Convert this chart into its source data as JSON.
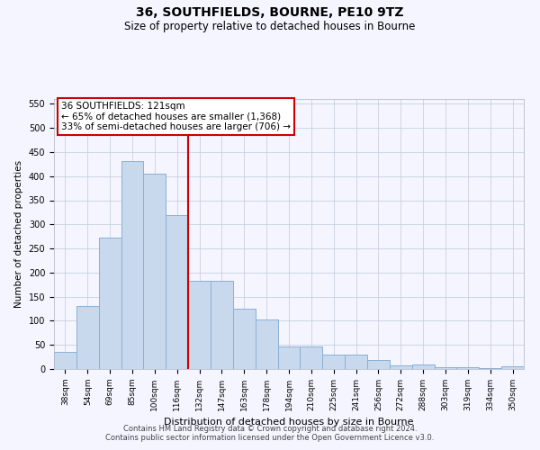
{
  "title": "36, SOUTHFIELDS, BOURNE, PE10 9TZ",
  "subtitle": "Size of property relative to detached houses in Bourne",
  "xlabel": "Distribution of detached houses by size in Bourne",
  "ylabel": "Number of detached properties",
  "categories": [
    "38sqm",
    "54sqm",
    "69sqm",
    "85sqm",
    "100sqm",
    "116sqm",
    "132sqm",
    "147sqm",
    "163sqm",
    "178sqm",
    "194sqm",
    "210sqm",
    "225sqm",
    "241sqm",
    "256sqm",
    "272sqm",
    "288sqm",
    "303sqm",
    "319sqm",
    "334sqm",
    "350sqm"
  ],
  "values": [
    35,
    130,
    272,
    432,
    405,
    320,
    183,
    183,
    125,
    103,
    46,
    46,
    30,
    30,
    18,
    7,
    10,
    3,
    4,
    2,
    6
  ],
  "bar_color": "#c8d9ee",
  "bar_edge_color": "#8ab0d4",
  "vline_color": "#cc0000",
  "annotation_text": "36 SOUTHFIELDS: 121sqm\n← 65% of detached houses are smaller (1,368)\n33% of semi-detached houses are larger (706) →",
  "annotation_box_color": "white",
  "annotation_box_edge": "#cc0000",
  "ylim": [
    0,
    560
  ],
  "yticks": [
    0,
    50,
    100,
    150,
    200,
    250,
    300,
    350,
    400,
    450,
    500,
    550
  ],
  "footer1": "Contains HM Land Registry data © Crown copyright and database right 2024.",
  "footer2": "Contains public sector information licensed under the Open Government Licence v3.0.",
  "bg_color": "#f5f5ff",
  "grid_color": "#c8d0e0"
}
